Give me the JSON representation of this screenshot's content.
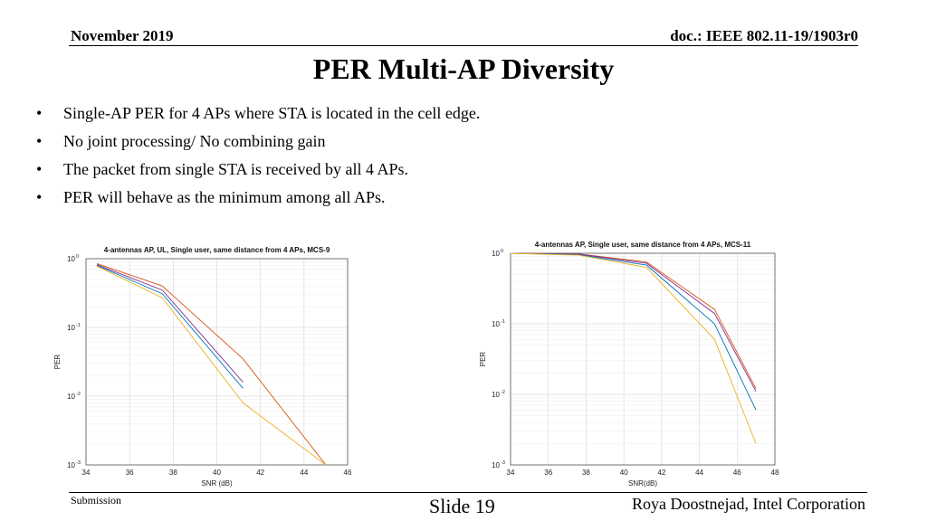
{
  "header": {
    "date": "November 2019",
    "doc": "doc.: IEEE 802.11-19/1903r0"
  },
  "title": "PER Multi-AP Diversity",
  "bullets": [
    "Single-AP PER for 4 APs where STA is located in the cell edge.",
    "No joint processing/ No combining gain",
    "The packet from single STA is received by all 4 APs.",
    "PER will behave as the minimum among all APs."
  ],
  "bullet_glyph": "•",
  "footer": {
    "left": "Submission",
    "center": "Slide 19",
    "right": "Roya Doostnejad, Intel Corporation"
  },
  "series_colors": [
    "#d95319",
    "#7e2f8e",
    "#0072bd",
    "#edb120"
  ],
  "chart_data": [
    {
      "type": "line",
      "title": "4-antennas AP, UL, Single user, same distance from 4 APs, MCS-9",
      "xlabel": "SNR (dB)",
      "ylabel": "PER",
      "xlim": [
        34,
        46
      ],
      "ylim": [
        0.001,
        1
      ],
      "yscale": "log",
      "grid": true,
      "xticks": [
        "34",
        "36",
        "38",
        "40",
        "42",
        "44",
        "46"
      ],
      "yticks": [
        {
          "base": "10",
          "exp": "0"
        },
        {
          "base": "10",
          "exp": "-1"
        },
        {
          "base": "10",
          "exp": "-2"
        },
        {
          "base": "10",
          "exp": "-3"
        }
      ],
      "series": [
        {
          "x": [
            34.5,
            37.5,
            41.2,
            45.0
          ],
          "y": [
            0.85,
            0.4,
            0.035,
            0.001
          ]
        },
        {
          "x": [
            34.5,
            37.5,
            41.2
          ],
          "y": [
            0.82,
            0.35,
            0.016
          ]
        },
        {
          "x": [
            34.5,
            37.5,
            41.2
          ],
          "y": [
            0.8,
            0.31,
            0.013
          ]
        },
        {
          "x": [
            34.5,
            37.5,
            41.2,
            45.0
          ],
          "y": [
            0.78,
            0.27,
            0.008,
            0.001
          ]
        }
      ]
    },
    {
      "type": "line",
      "title": "4-antennas AP, Single user, same distance from 4 APs, MCS-11",
      "xlabel": "SNR(dB)",
      "ylabel": "PER",
      "xlim": [
        34,
        48
      ],
      "ylim": [
        0.001,
        1
      ],
      "yscale": "log",
      "grid": true,
      "xticks": [
        "34",
        "36",
        "38",
        "40",
        "42",
        "44",
        "46",
        "48"
      ],
      "yticks": [
        {
          "base": "10",
          "exp": "0"
        },
        {
          "base": "10",
          "exp": "-1"
        },
        {
          "base": "10",
          "exp": "-2"
        },
        {
          "base": "10",
          "exp": "-3"
        }
      ],
      "series": [
        {
          "x": [
            34.0,
            37.6,
            41.2,
            44.8,
            47.0
          ],
          "y": [
            1.0,
            0.98,
            0.75,
            0.16,
            0.012
          ]
        },
        {
          "x": [
            34.0,
            37.6,
            41.2,
            44.8,
            47.0
          ],
          "y": [
            1.0,
            0.97,
            0.72,
            0.14,
            0.011
          ]
        },
        {
          "x": [
            34.0,
            37.6,
            41.2,
            44.8,
            47.0
          ],
          "y": [
            1.0,
            0.95,
            0.68,
            0.1,
            0.006
          ]
        },
        {
          "x": [
            34.0,
            37.6,
            41.2,
            44.8,
            47.0
          ],
          "y": [
            1.0,
            0.94,
            0.63,
            0.06,
            0.002
          ]
        }
      ]
    }
  ]
}
